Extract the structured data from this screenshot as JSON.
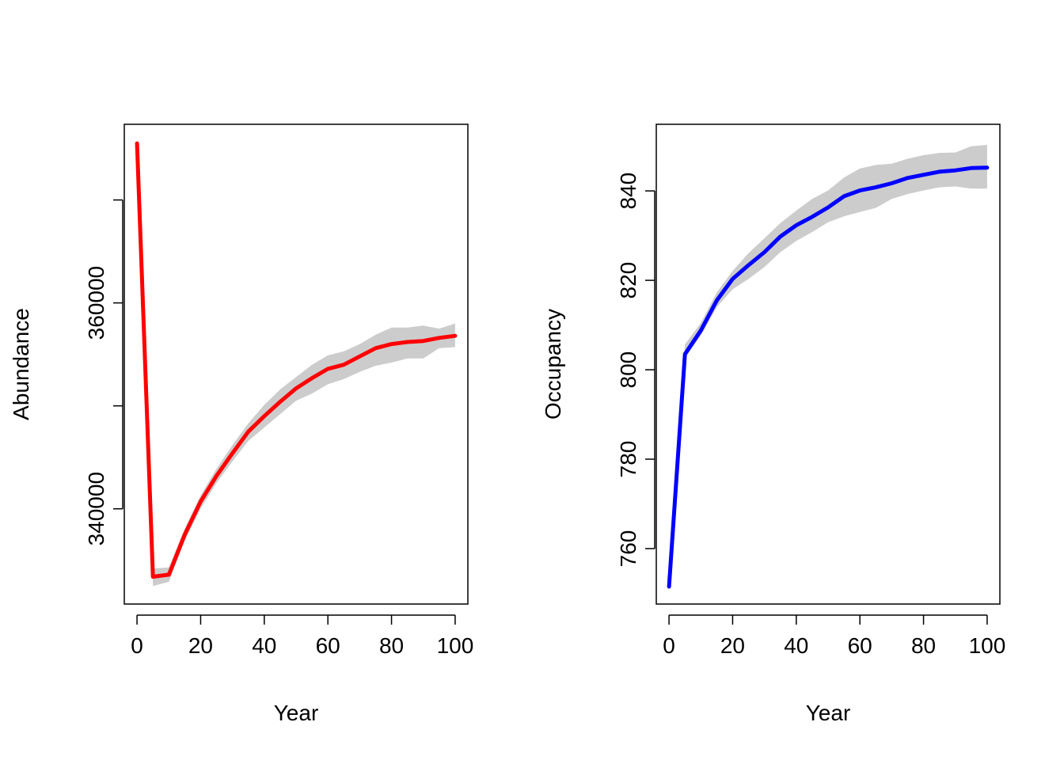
{
  "chart_data": [
    {
      "type": "line",
      "title": "",
      "xlabel": "Year",
      "ylabel": "Abundance",
      "xlim": [
        -4,
        104
      ],
      "ylim": [
        330750,
        377350
      ],
      "x_ticks": [
        0,
        20,
        40,
        60,
        80,
        100
      ],
      "x_tick_labels": [
        "0",
        "20",
        "40",
        "60",
        "80",
        "100"
      ],
      "y_ticks": [
        340000,
        350000,
        360000,
        370000
      ],
      "y_tick_labels": [
        "340000",
        "",
        "360000",
        ""
      ],
      "line_color": "#ff0000",
      "band_color": "#cccccc",
      "series": [
        {
          "name": "Abundance",
          "x": [
            0,
            5,
            10,
            15,
            20,
            25,
            30,
            35,
            40,
            45,
            50,
            55,
            60,
            65,
            70,
            75,
            80,
            85,
            90,
            95,
            100
          ],
          "values": [
            375500,
            333400,
            333600,
            337500,
            340700,
            343200,
            345400,
            347500,
            349000,
            350400,
            351700,
            352700,
            353600,
            354000,
            354800,
            355600,
            356000,
            356200,
            356300,
            356600,
            356800
          ],
          "lower": [
            375500,
            332500,
            332900,
            336900,
            340000,
            342500,
            344600,
            346600,
            347900,
            349200,
            350500,
            351200,
            352100,
            352600,
            353300,
            353900,
            354200,
            354600,
            354600,
            355600,
            355700
          ],
          "upper": [
            375500,
            334200,
            334300,
            338100,
            341300,
            343900,
            346200,
            348300,
            350100,
            351600,
            352800,
            354000,
            354900,
            355300,
            356000,
            356900,
            357600,
            357600,
            357800,
            357500,
            358000
          ]
        }
      ]
    },
    {
      "type": "line",
      "title": "",
      "xlabel": "Year",
      "ylabel": "Occupancy",
      "xlim": [
        -4,
        104
      ],
      "ylim": [
        747.6,
        854.9
      ],
      "x_ticks": [
        0,
        20,
        40,
        60,
        80,
        100
      ],
      "x_tick_labels": [
        "0",
        "20",
        "40",
        "60",
        "80",
        "100"
      ],
      "y_ticks": [
        760,
        780,
        800,
        820,
        840
      ],
      "y_tick_labels": [
        "760",
        "780",
        "800",
        "820",
        "840"
      ],
      "line_color": "#0000ff",
      "band_color": "#cccccc",
      "series": [
        {
          "name": "Occupancy",
          "x": [
            0,
            5,
            10,
            15,
            20,
            25,
            30,
            35,
            40,
            45,
            50,
            55,
            60,
            65,
            70,
            75,
            80,
            85,
            90,
            95,
            100
          ],
          "values": [
            751.5,
            803.5,
            808.8,
            815.5,
            820.3,
            823.4,
            826.3,
            829.8,
            832.3,
            834.2,
            836.3,
            838.8,
            840.1,
            840.8,
            841.7,
            842.9,
            843.6,
            844.3,
            844.6,
            845.1,
            845.2
          ],
          "lower": [
            751.5,
            802.6,
            807.6,
            814.0,
            818.0,
            820.3,
            823.0,
            826.3,
            828.8,
            830.8,
            833.0,
            834.3,
            835.3,
            836.2,
            838.2,
            839.3,
            840.1,
            840.8,
            841.0,
            840.5,
            840.5
          ],
          "upper": [
            751.5,
            805.7,
            810.5,
            817.3,
            822.1,
            826.1,
            829.4,
            832.8,
            835.6,
            838.2,
            840.1,
            843.0,
            845.0,
            845.8,
            846.1,
            847.2,
            848.0,
            848.5,
            848.6,
            850.0,
            850.3
          ]
        }
      ]
    }
  ]
}
